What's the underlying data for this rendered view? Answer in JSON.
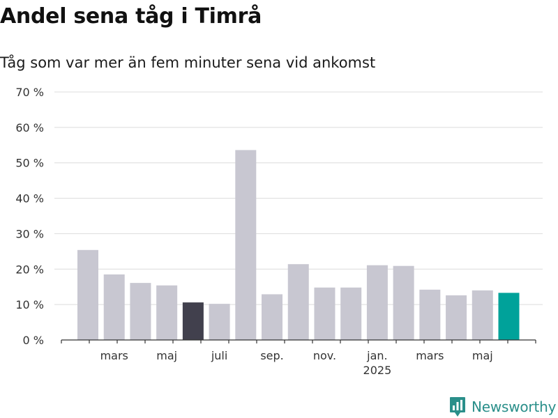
{
  "title": "Andel sena tåg i Timrå",
  "subtitle": "Tåg som var mer än fem minuter sena vid ankomst",
  "brand": {
    "name": "Newsworthy",
    "logo_icon": "bar-chart-logo-icon",
    "color": "#2a8f8a"
  },
  "chart_data": {
    "type": "bar",
    "categories": [
      "2024-02",
      "2024-03",
      "2024-04",
      "2024-05",
      "2024-06",
      "2024-07",
      "2024-08",
      "2024-09",
      "2024-10",
      "2024-11",
      "2024-12",
      "2025-01",
      "2025-02",
      "2025-03",
      "2025-04",
      "2025-05",
      "2025-06"
    ],
    "values": [
      25.4,
      18.5,
      16.1,
      15.4,
      10.6,
      10.2,
      53.6,
      12.9,
      21.4,
      14.8,
      14.8,
      21.1,
      20.9,
      14.2,
      12.6,
      14.0,
      13.3
    ],
    "bar_colors": [
      "#c8c7d1",
      "#c8c7d1",
      "#c8c7d1",
      "#c8c7d1",
      "#41404d",
      "#c8c7d1",
      "#c8c7d1",
      "#c8c7d1",
      "#c8c7d1",
      "#c8c7d1",
      "#c8c7d1",
      "#c8c7d1",
      "#c8c7d1",
      "#c8c7d1",
      "#c8c7d1",
      "#c8c7d1",
      "#00a29a"
    ],
    "ylim": [
      0,
      70
    ],
    "yticks": [
      0,
      10,
      20,
      30,
      40,
      50,
      60,
      70
    ],
    "ytick_labels": [
      "0 %",
      "10 %",
      "20 %",
      "30 %",
      "40 %",
      "50 %",
      "60 %",
      "70 %"
    ],
    "xtick_labels": [
      {
        "category": "2024-03",
        "label": "mars"
      },
      {
        "category": "2024-05",
        "label": "maj"
      },
      {
        "category": "2024-07",
        "label": "juli"
      },
      {
        "category": "2024-09",
        "label": "sep."
      },
      {
        "category": "2024-11",
        "label": "nov."
      },
      {
        "category": "2025-01",
        "label": "jan.",
        "sublabel": "2025"
      },
      {
        "category": "2025-03",
        "label": "mars"
      },
      {
        "category": "2025-05",
        "label": "maj"
      }
    ],
    "grid": true,
    "xlabel": "",
    "ylabel": ""
  }
}
